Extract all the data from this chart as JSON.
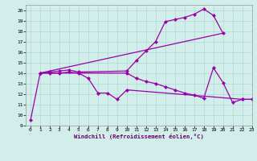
{
  "xlabel": "Windchill (Refroidissement éolien,°C)",
  "xlim": [
    -0.5,
    23
  ],
  "ylim": [
    9,
    20.5
  ],
  "xticks": [
    0,
    1,
    2,
    3,
    4,
    5,
    6,
    7,
    8,
    9,
    10,
    11,
    12,
    13,
    14,
    15,
    16,
    17,
    18,
    19,
    20,
    21,
    22,
    23
  ],
  "yticks": [
    9,
    10,
    11,
    12,
    13,
    14,
    15,
    16,
    17,
    18,
    19,
    20
  ],
  "bg_color": "#d2eeeb",
  "line_color": "#9900aa",
  "grid_color": "#b0d8d4",
  "s1x": [
    0,
    1,
    2,
    3,
    4,
    5,
    6,
    7,
    8,
    9,
    10,
    22,
    23
  ],
  "s1y": [
    9.5,
    14.0,
    14.0,
    14.0,
    14.1,
    14.0,
    13.5,
    12.1,
    12.1,
    11.5,
    12.4,
    11.5,
    11.5
  ],
  "s2x": [
    1,
    2,
    3,
    4,
    5,
    10,
    11,
    12,
    13,
    14,
    15,
    16,
    17,
    18,
    19,
    20
  ],
  "s2y": [
    14.0,
    14.1,
    14.2,
    14.3,
    14.1,
    14.2,
    15.2,
    16.1,
    17.0,
    18.9,
    19.1,
    19.3,
    19.6,
    20.1,
    19.5,
    17.8
  ],
  "s3x": [
    1,
    20
  ],
  "s3y": [
    14.0,
    17.8
  ],
  "s4x": [
    1,
    10,
    11,
    12,
    13,
    14,
    15,
    16,
    17,
    18,
    19,
    20,
    21,
    22,
    23
  ],
  "s4y": [
    14.0,
    14.0,
    13.5,
    13.2,
    13.0,
    12.7,
    12.4,
    12.1,
    11.9,
    11.6,
    14.5,
    13.1,
    11.2,
    11.5,
    11.5
  ]
}
